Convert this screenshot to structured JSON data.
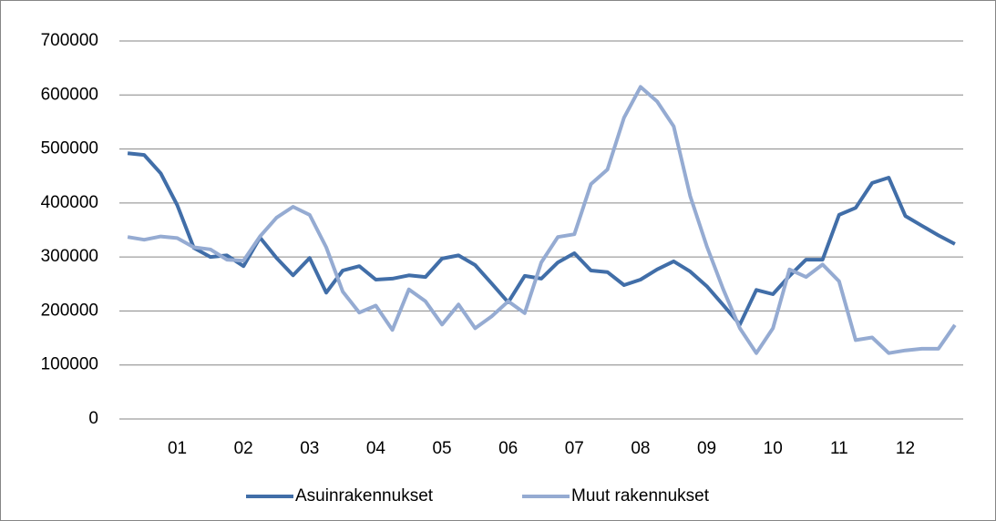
{
  "chart_data": {
    "type": "line",
    "categories": [
      null,
      null,
      null,
      "01",
      null,
      null,
      null,
      "02",
      null,
      null,
      null,
      "03",
      null,
      null,
      null,
      "04",
      null,
      null,
      null,
      "05",
      null,
      null,
      null,
      "06",
      null,
      null,
      null,
      "07",
      null,
      null,
      null,
      "08",
      null,
      null,
      null,
      "09",
      null,
      null,
      null,
      "10",
      null,
      null,
      null,
      "11",
      null,
      null,
      null,
      "12",
      null,
      null,
      null
    ],
    "series": [
      {
        "name": "Asuinrakennukset",
        "color": "#416ea8",
        "values": [
          492000,
          489000,
          455000,
          396000,
          317000,
          300000,
          303000,
          283000,
          336000,
          298000,
          266000,
          298000,
          234000,
          275000,
          283000,
          258000,
          260000,
          266000,
          263000,
          297000,
          303000,
          285000,
          251000,
          216000,
          265000,
          260000,
          290000,
          307000,
          275000,
          272000,
          248000,
          258000,
          277000,
          292000,
          273000,
          246000,
          211000,
          175000,
          239000,
          231000,
          265000,
          295000,
          295000,
          378000,
          391000,
          437000,
          447000,
          376000,
          358000,
          340000,
          324000
        ]
      },
      {
        "name": "Muut rakennukset",
        "color": "#95abd2",
        "values": [
          337000,
          332000,
          338000,
          335000,
          318000,
          314000,
          295000,
          293000,
          338000,
          373000,
          393000,
          378000,
          318000,
          236000,
          197000,
          210000,
          165000,
          240000,
          218000,
          175000,
          212000,
          168000,
          190000,
          218000,
          196000,
          290000,
          337000,
          342000,
          435000,
          462000,
          558000,
          615000,
          588000,
          542000,
          413000,
          320000,
          240000,
          168000,
          122000,
          168000,
          277000,
          263000,
          286000,
          255000,
          146000,
          151000,
          122000,
          127000,
          130000,
          130000,
          174000
        ]
      }
    ],
    "ylim": [
      0,
      700000
    ],
    "yticks": [
      0,
      100000,
      200000,
      300000,
      400000,
      500000,
      600000,
      700000
    ],
    "grid": true,
    "legend": "bottom"
  }
}
